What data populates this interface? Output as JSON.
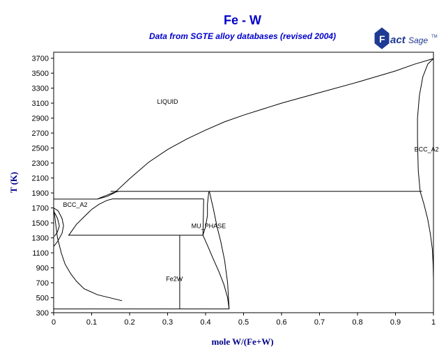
{
  "chart_data": {
    "type": "line",
    "title": "Fe - W",
    "subtitle": "Data from SGTE alloy databases (revised 2004)",
    "xlabel": "mole W/(Fe+W)",
    "ylabel": "T (K)",
    "xlim": [
      0,
      1
    ],
    "ylim": [
      300,
      3780
    ],
    "xticks": [
      "0",
      "0.1",
      "0.2",
      "0.3",
      "0.4",
      "0.5",
      "0.6",
      "0.7",
      "0.8",
      "0.9",
      "1"
    ],
    "yticks": [
      "300",
      "500",
      "700",
      "900",
      "1100",
      "1300",
      "1500",
      "1700",
      "1900",
      "2100",
      "2300",
      "2500",
      "2700",
      "2900",
      "3100",
      "3300",
      "3500",
      "3700"
    ],
    "grid": false,
    "colors": {
      "title": "#0000cc",
      "axislabel": "#00008b",
      "lines": "#000000",
      "logo": "#1f3a93"
    },
    "phase_labels": [
      {
        "text": "LIQUID",
        "x": 0.3,
        "y": 3120
      },
      {
        "text": "BCC_A2",
        "x": 0.057,
        "y": 1740
      },
      {
        "text": "BCC_A2",
        "x": 0.982,
        "y": 2480
      },
      {
        "text": "MU_PHASE",
        "x": 0.408,
        "y": 1460
      },
      {
        "text": "Fe2W",
        "x": 0.318,
        "y": 750
      }
    ],
    "series": [
      {
        "values": [
          [
            0.115,
            1818
          ],
          [
            0.14,
            1852
          ],
          [
            0.16,
            1900
          ],
          [
            0.2,
            2090
          ],
          [
            0.25,
            2310
          ],
          [
            0.3,
            2480
          ],
          [
            0.35,
            2620
          ],
          [
            0.4,
            2740
          ],
          [
            0.45,
            2850
          ],
          [
            0.5,
            2940
          ],
          [
            0.6,
            3100
          ],
          [
            0.7,
            3240
          ],
          [
            0.8,
            3380
          ],
          [
            0.9,
            3530
          ],
          [
            0.95,
            3620
          ],
          [
            1.0,
            3695
          ]
        ]
      },
      {
        "values": [
          [
            0.0,
            1818
          ],
          [
            0.115,
            1818
          ]
        ]
      },
      {
        "values": [
          [
            0.115,
            1818
          ],
          [
            0.125,
            1840
          ],
          [
            0.14,
            1870
          ],
          [
            0.155,
            1900
          ],
          [
            0.17,
            1920
          ]
        ]
      },
      {
        "values": [
          [
            0.0,
            1700
          ],
          [
            0.005,
            1500
          ],
          [
            0.01,
            1300
          ],
          [
            0.02,
            1100
          ],
          [
            0.03,
            950
          ],
          [
            0.045,
            820
          ],
          [
            0.06,
            720
          ],
          [
            0.08,
            620
          ],
          [
            0.115,
            540
          ],
          [
            0.18,
            460
          ]
        ]
      },
      {
        "values": [
          [
            0.15,
            1922
          ],
          [
            0.97,
            1922
          ]
        ]
      },
      {
        "values": [
          [
            0.04,
            1336
          ],
          [
            0.06,
            1480
          ],
          [
            0.08,
            1580
          ],
          [
            0.1,
            1680
          ],
          [
            0.12,
            1750
          ],
          [
            0.14,
            1800
          ],
          [
            0.155,
            1820
          ]
        ]
      },
      {
        "values": [
          [
            0.155,
            1820
          ],
          [
            0.395,
            1820
          ]
        ]
      },
      {
        "values": [
          [
            0.038,
            1336
          ],
          [
            0.393,
            1336
          ]
        ]
      },
      {
        "values": [
          [
            0.395,
            1820
          ],
          [
            0.393,
            1336
          ]
        ]
      },
      {
        "values": [
          [
            0.393,
            1336
          ],
          [
            0.4,
            1450
          ],
          [
            0.405,
            1600
          ],
          [
            0.405,
            1750
          ],
          [
            0.408,
            1900
          ],
          [
            0.41,
            1922
          ]
        ]
      },
      {
        "values": [
          [
            0.41,
            1922
          ],
          [
            0.42,
            1700
          ],
          [
            0.43,
            1450
          ],
          [
            0.44,
            1250
          ],
          [
            0.45,
            1000
          ],
          [
            0.458,
            700
          ],
          [
            0.462,
            350
          ]
        ]
      },
      {
        "values": [
          [
            0.393,
            1336
          ],
          [
            0.405,
            1200
          ],
          [
            0.42,
            1020
          ],
          [
            0.435,
            850
          ],
          [
            0.448,
            680
          ],
          [
            0.458,
            500
          ],
          [
            0.462,
            350
          ]
        ]
      },
      {
        "values": [
          [
            0.0,
            350
          ],
          [
            0.462,
            350
          ]
        ]
      },
      {
        "values": [
          [
            0.332,
            1336
          ],
          [
            0.332,
            350
          ]
        ]
      },
      {
        "values": [
          [
            0.0,
            1700
          ],
          [
            0.012,
            1660
          ],
          [
            0.022,
            1560
          ],
          [
            0.026,
            1460
          ],
          [
            0.022,
            1360
          ],
          [
            0.01,
            1250
          ],
          [
            0.0,
            1185
          ]
        ]
      },
      {
        "values": [
          [
            0.002,
            1640
          ],
          [
            0.01,
            1560
          ],
          [
            0.015,
            1460
          ],
          [
            0.01,
            1380
          ],
          [
            0.002,
            1320
          ]
        ]
      },
      {
        "values": [
          [
            1.0,
            3695
          ],
          [
            0.985,
            3620
          ],
          [
            0.972,
            3450
          ],
          [
            0.963,
            3200
          ],
          [
            0.958,
            2900
          ],
          [
            0.958,
            2600
          ],
          [
            0.96,
            2200
          ],
          [
            0.965,
            1922
          ]
        ]
      },
      {
        "values": [
          [
            0.965,
            1922
          ],
          [
            0.975,
            1750
          ],
          [
            0.985,
            1550
          ],
          [
            0.992,
            1350
          ],
          [
            0.997,
            1150
          ],
          [
            0.999,
            950
          ],
          [
            1.0,
            750
          ]
        ]
      }
    ]
  }
}
